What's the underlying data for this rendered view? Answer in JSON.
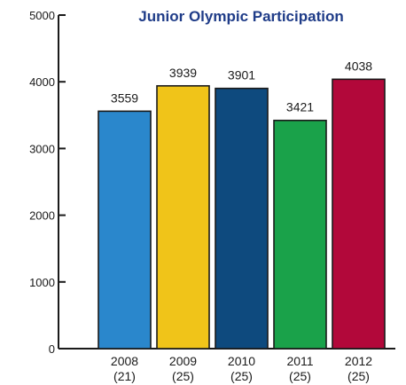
{
  "chart_data": {
    "type": "bar",
    "title": "Junior Olympic Participation",
    "xlabel": "",
    "ylabel": "",
    "ylim": [
      0,
      5000
    ],
    "yticks": [
      0,
      1000,
      2000,
      3000,
      4000,
      5000
    ],
    "categories": [
      "2008",
      "2009",
      "2010",
      "2011",
      "2012"
    ],
    "category_sublabels": [
      "(21)",
      "(25)",
      "(25)",
      "(25)",
      "(25)"
    ],
    "values": [
      3559,
      3939,
      3901,
      3421,
      4038
    ],
    "colors": [
      "#2a87cc",
      "#f0c419",
      "#0e4a7e",
      "#1aa24a",
      "#b2083a"
    ],
    "grid": false,
    "legend": "none"
  }
}
